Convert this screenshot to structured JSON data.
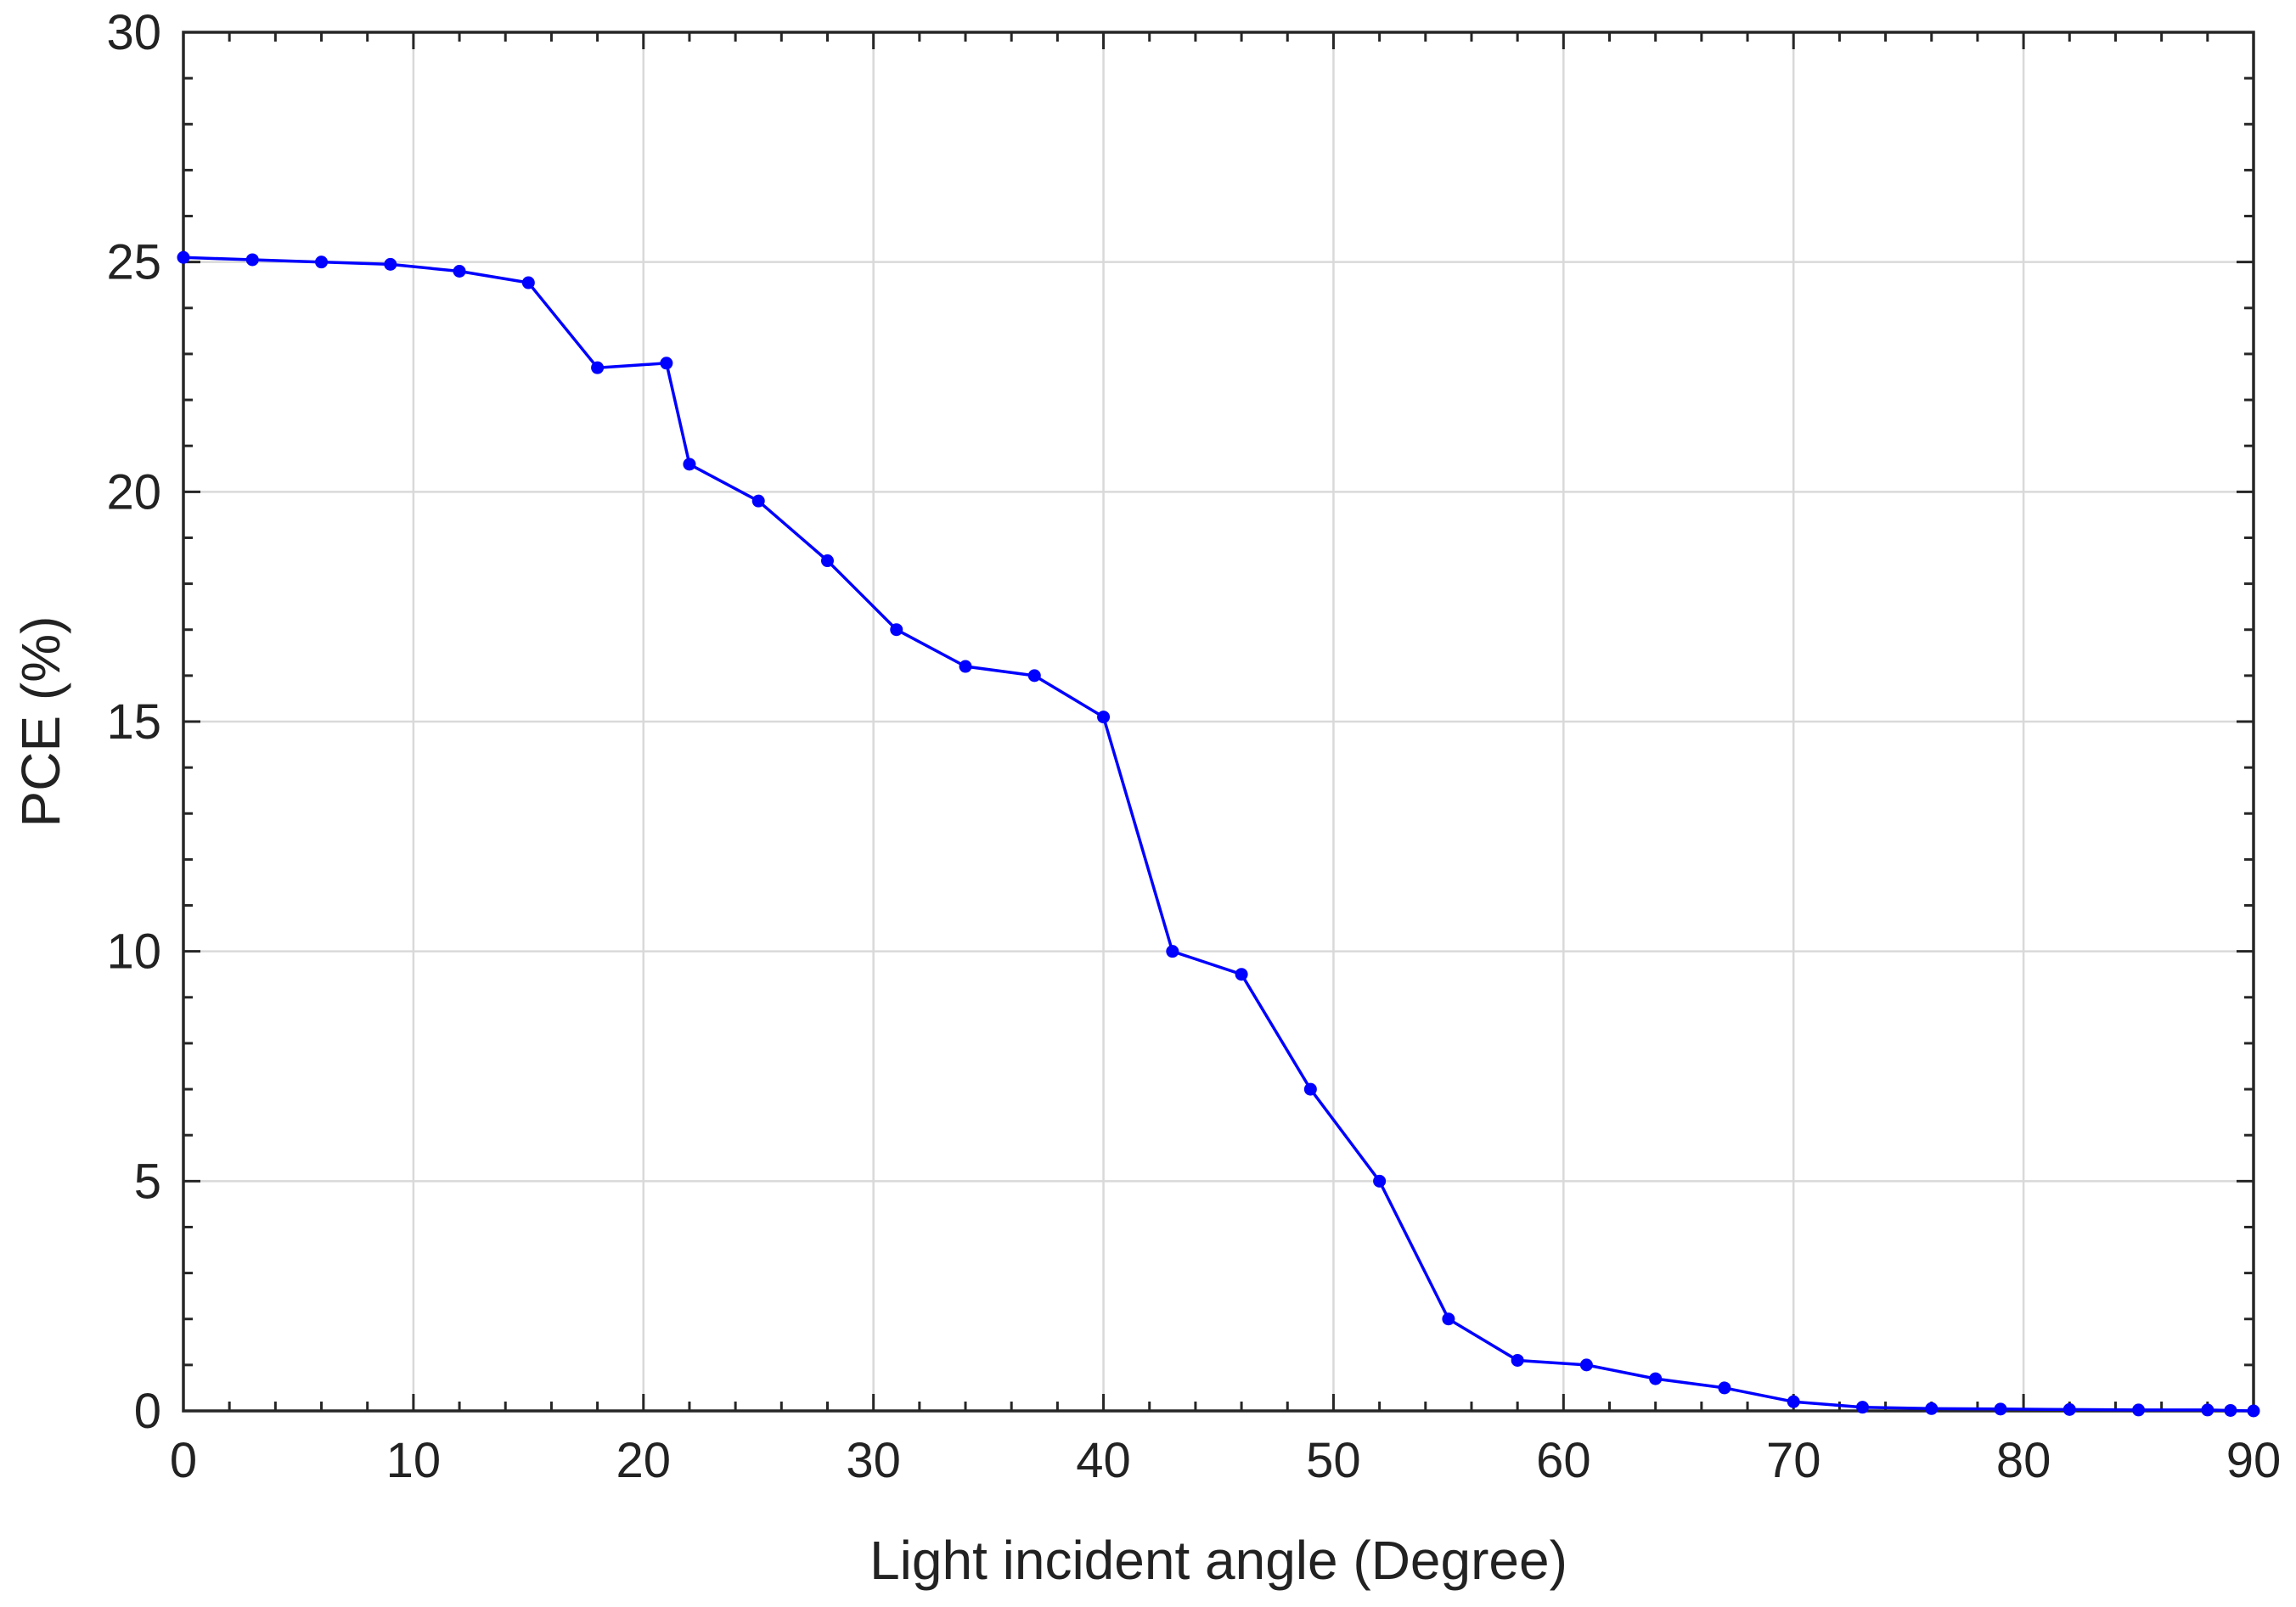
{
  "chart_data": {
    "type": "line",
    "title": "",
    "xlabel": "Light incident angle (Degree)",
    "ylabel": "PCE (%)",
    "xlim": [
      0,
      90
    ],
    "ylim": [
      0,
      30
    ],
    "xticks": [
      0,
      10,
      20,
      30,
      40,
      50,
      60,
      70,
      80,
      90
    ],
    "xtick_labels": [
      "0",
      "10",
      "20",
      "30",
      "40",
      "50",
      "60",
      "70",
      "80",
      "90"
    ],
    "yticks": [
      0,
      5,
      10,
      15,
      20,
      25,
      30
    ],
    "ytick_labels": [
      "0",
      "5",
      "10",
      "15",
      "20",
      "25",
      "30"
    ],
    "grid": true,
    "legend": "none",
    "series": [
      {
        "name": "PCE",
        "color": "#0000ff",
        "marker": "dot",
        "x": [
          0,
          3,
          6,
          9,
          12,
          15,
          18,
          21,
          22,
          25,
          28,
          31,
          34,
          37,
          40,
          43,
          46,
          49,
          52,
          55,
          58,
          61,
          64,
          67,
          70,
          73,
          76,
          79,
          82,
          85,
          88,
          89,
          90
        ],
        "y": [
          25.1,
          25.05,
          25.0,
          24.95,
          24.8,
          24.55,
          22.7,
          22.8,
          20.6,
          19.8,
          18.5,
          17.0,
          16.2,
          16.0,
          15.1,
          10.0,
          9.5,
          7.0,
          5.0,
          2.0,
          1.1,
          1.0,
          0.7,
          0.5,
          0.2,
          0.08,
          0.05,
          0.04,
          0.03,
          0.02,
          0.02,
          0.01,
          0.0
        ]
      }
    ]
  }
}
